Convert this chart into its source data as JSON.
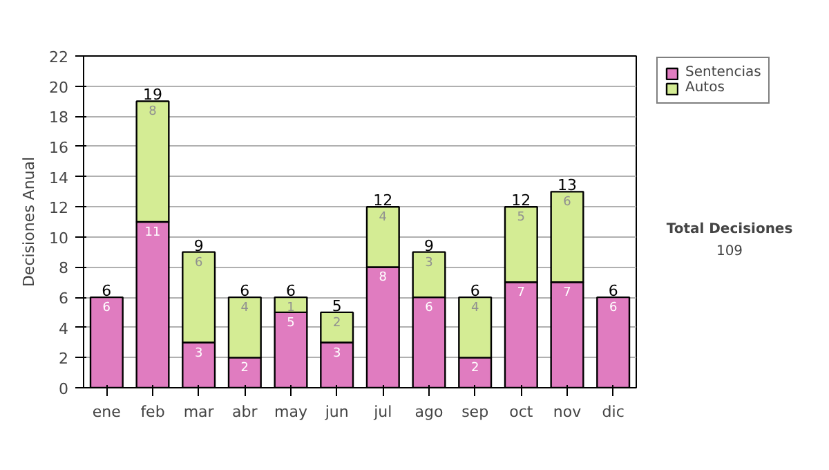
{
  "chart_data": {
    "type": "bar",
    "stacked": true,
    "ylabel": "Decisiones Anual",
    "categories": [
      "ene",
      "feb",
      "mar",
      "abr",
      "may",
      "jun",
      "jul",
      "ago",
      "sep",
      "oct",
      "nov",
      "dic"
    ],
    "series": [
      {
        "name": "Sentencias",
        "color": "#e07cc0",
        "values": [
          6,
          11,
          3,
          2,
          5,
          3,
          8,
          6,
          2,
          7,
          7,
          6
        ],
        "value_labels": [
          "6",
          "11",
          "3",
          "2",
          "5",
          "3",
          "8",
          "6",
          "2",
          "7",
          "7",
          "6"
        ]
      },
      {
        "name": "Autos",
        "color": "#d4ec94",
        "values": [
          0,
          8,
          6,
          4,
          1,
          2,
          4,
          3,
          4,
          5,
          6,
          0
        ],
        "value_labels": [
          null,
          "8",
          "6",
          "4",
          "1",
          "2",
          "4",
          "3",
          "4",
          "5",
          "6",
          null
        ]
      }
    ],
    "totals": [
      "6",
      "19",
      "9",
      "6",
      "6",
      "5",
      "12",
      "9",
      "6",
      "12",
      "13",
      "6"
    ],
    "ylim": [
      0,
      22
    ],
    "yticks": [
      0,
      2,
      4,
      6,
      8,
      10,
      12,
      14,
      16,
      18,
      20,
      22
    ],
    "grid": "y",
    "legend": "right",
    "annotations": [
      "Total Decisiones",
      "109"
    ]
  }
}
